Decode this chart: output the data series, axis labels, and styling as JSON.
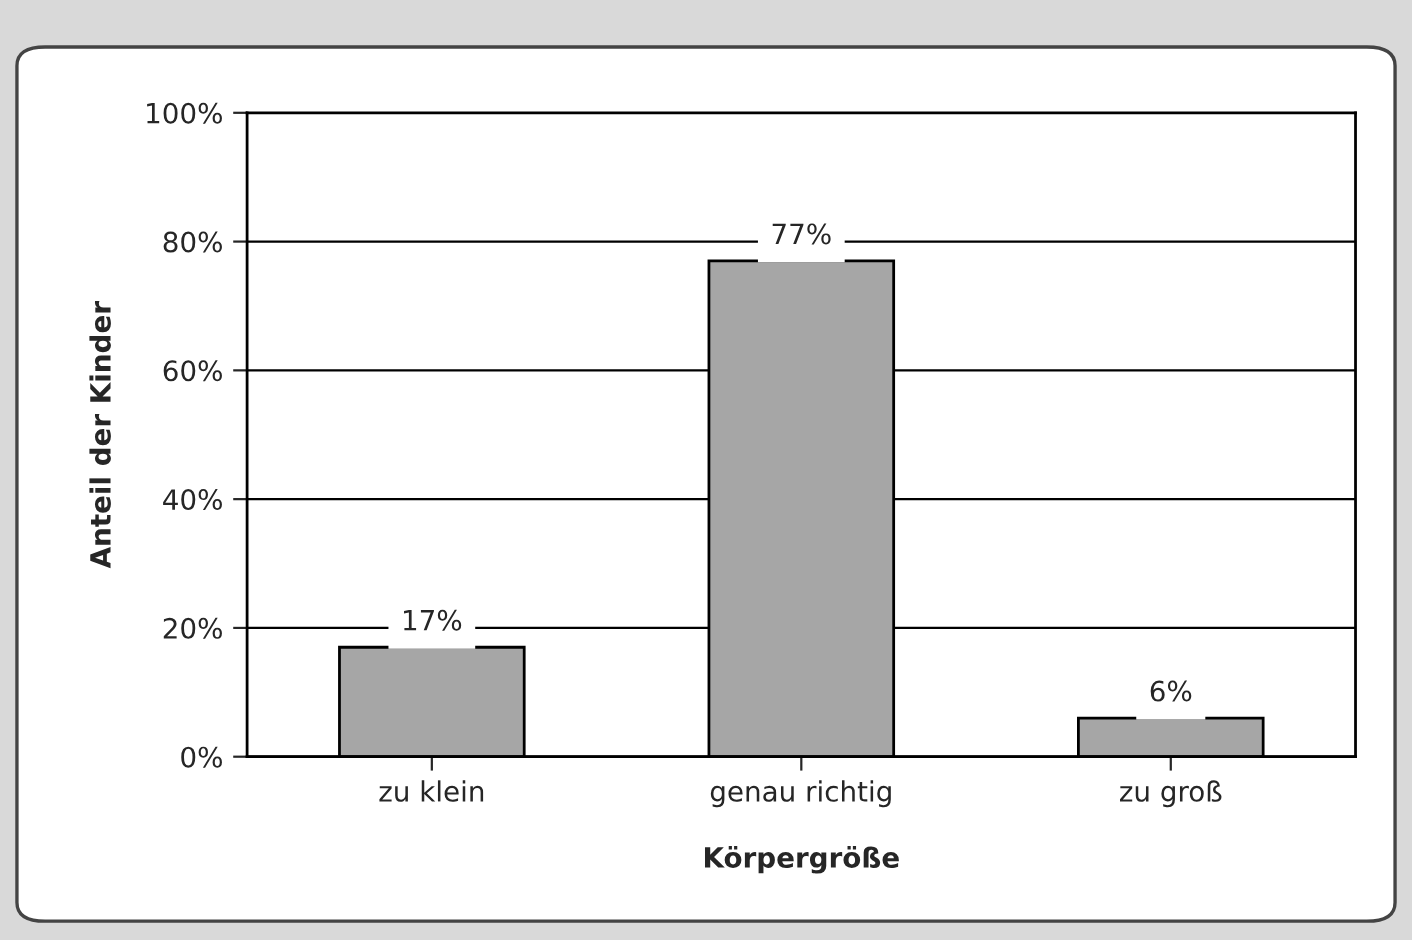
{
  "chart_data": {
    "type": "bar",
    "xlabel": "Körpergröße",
    "ylabel": "Anteil der Kinder",
    "categories": [
      "zu klein",
      "genau richtig",
      "zu groß"
    ],
    "values": [
      17,
      77,
      6
    ],
    "color": "#a6a6a6",
    "value_labels": [
      "17%",
      "77%",
      "6%"
    ],
    "ylim": [
      0,
      100
    ],
    "yticks": [
      {
        "value": 0,
        "label": "0%"
      },
      {
        "value": 20,
        "label": "20%"
      },
      {
        "value": 40,
        "label": "40%"
      },
      {
        "value": 60,
        "label": "60%"
      },
      {
        "value": 80,
        "label": "80%"
      },
      {
        "value": 100,
        "label": "100%"
      }
    ],
    "grid": "y",
    "legend": false
  }
}
